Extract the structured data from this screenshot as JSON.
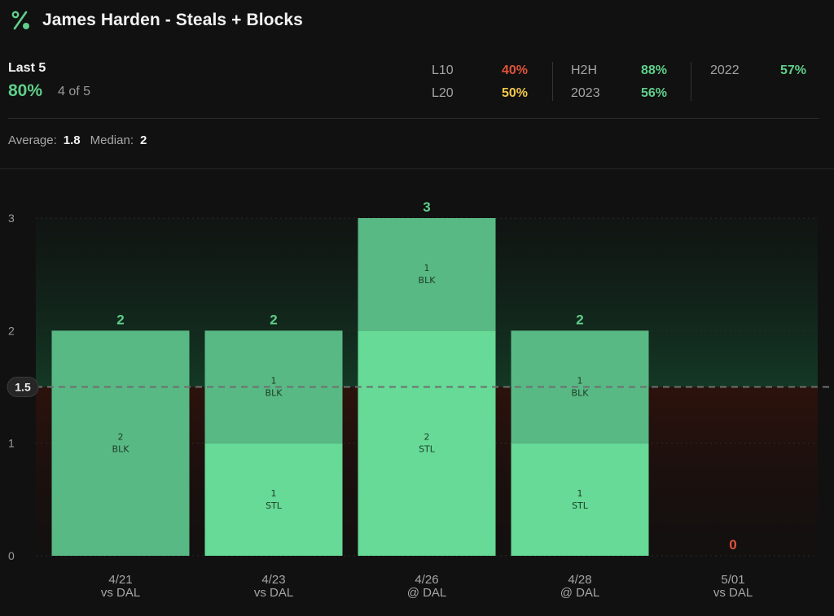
{
  "header": {
    "title": "James Harden - Steals + Blocks",
    "icon": "percent-icon"
  },
  "summary": {
    "label": "Last 5",
    "pct": "80%",
    "count": "4 of 5"
  },
  "stats": [
    {
      "key": "L10",
      "value": "40%",
      "color": "#e0533a"
    },
    {
      "key": "L20",
      "value": "50%",
      "color": "#f2c84b"
    },
    {
      "key": "H2H",
      "value": "88%",
      "color": "#5fcf8a"
    },
    {
      "key": "2023",
      "value": "56%",
      "color": "#5fcf8a"
    },
    {
      "key": "2022",
      "value": "57%",
      "color": "#5fcf8a"
    }
  ],
  "averages": {
    "average_label": "Average:",
    "average_value": "1.8",
    "median_label": "Median:",
    "median_value": "2"
  },
  "colors": {
    "hit": "#5fcf8a",
    "miss": "#e0533a",
    "segment_light": "#66da96",
    "segment_dark": "#58b984"
  },
  "chart_data": {
    "type": "bar",
    "stacked": true,
    "ylim": [
      0,
      3
    ],
    "yticks": [
      0,
      1,
      2,
      3
    ],
    "line": {
      "value": 1.5,
      "label": "1.5"
    },
    "categories": [
      {
        "date": "4/21",
        "opponent": "vs DAL"
      },
      {
        "date": "4/23",
        "opponent": "vs DAL"
      },
      {
        "date": "4/26",
        "opponent": "@ DAL"
      },
      {
        "date": "4/28",
        "opponent": "@ DAL"
      },
      {
        "date": "5/01",
        "opponent": "vs DAL"
      }
    ],
    "bars": [
      {
        "total": 2,
        "segments": [
          {
            "value": 2,
            "label": "BLK"
          }
        ]
      },
      {
        "total": 2,
        "segments": [
          {
            "value": 1,
            "label": "STL"
          },
          {
            "value": 1,
            "label": "BLK"
          }
        ]
      },
      {
        "total": 3,
        "segments": [
          {
            "value": 2,
            "label": "STL"
          },
          {
            "value": 1,
            "label": "BLK"
          }
        ]
      },
      {
        "total": 2,
        "segments": [
          {
            "value": 1,
            "label": "STL"
          },
          {
            "value": 1,
            "label": "BLK"
          }
        ]
      },
      {
        "total": 0,
        "segments": []
      }
    ],
    "grid": true
  }
}
